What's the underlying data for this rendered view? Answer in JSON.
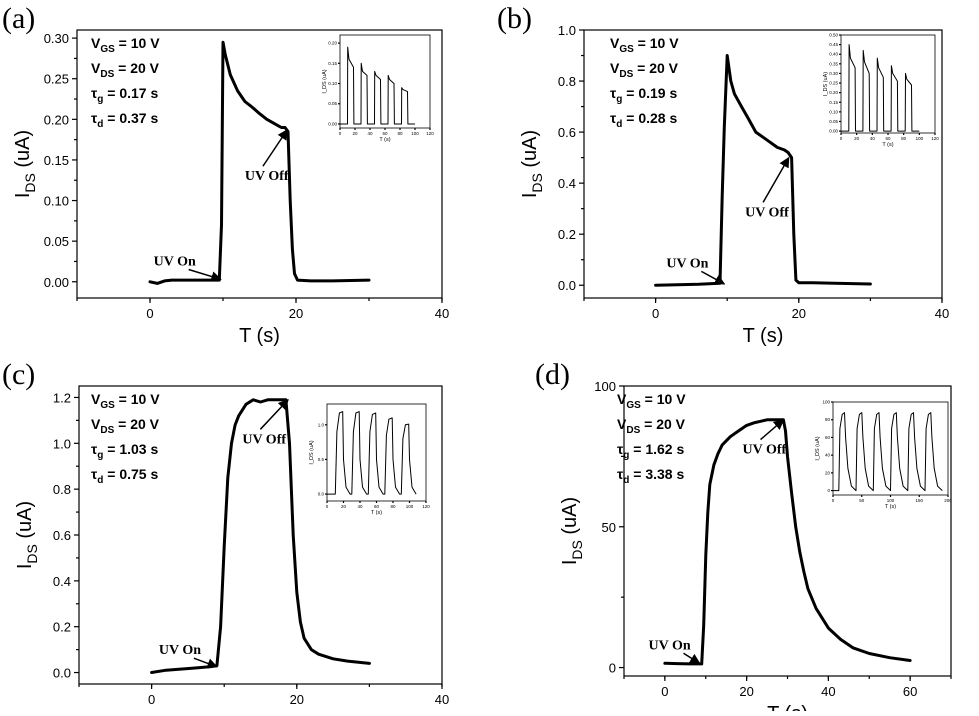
{
  "chart_data": [
    {
      "type": "line",
      "panel_label": "(a)",
      "xlabel": "T",
      "xunit": "(s)",
      "ylabel_main": "I",
      "ylabel_sub": "DS",
      "yunit": "(uA)",
      "xlim": [
        -10,
        40
      ],
      "ylim": [
        -0.02,
        0.31
      ],
      "xticks": [
        "0",
        "20",
        "40"
      ],
      "xtick_values": [
        0,
        20,
        40
      ],
      "yticks": [
        "0.00",
        "0.05",
        "0.10",
        "0.15",
        "0.20",
        "0.25",
        "0.30"
      ],
      "ytick_values": [
        0,
        0.05,
        0.1,
        0.15,
        0.2,
        0.25,
        0.3
      ],
      "params": [
        {
          "sym": "V",
          "sub": "GS",
          "val": " = 10 V"
        },
        {
          "sym": "V",
          "sub": "DS",
          "val": " = 20 V"
        },
        {
          "sym": "τ",
          "sub": "g",
          "val": " = 0.17 s"
        },
        {
          "sym": "τ",
          "sub": "d",
          "val": " = 0.37 s"
        }
      ],
      "annotations": [
        {
          "text": "UV On",
          "label_x": 0.5,
          "label_y": 0.02,
          "arrow_to": [
            9.7,
            0.003
          ]
        },
        {
          "text": "UV Off",
          "label_x": 13.0,
          "label_y": 0.125,
          "arrow_to": [
            18.8,
            0.187
          ]
        }
      ],
      "x": [
        0,
        1,
        2,
        3,
        5,
        7,
        9,
        9.5,
        9.8,
        10.0,
        10.3,
        11,
        12,
        13,
        14,
        15,
        16,
        17,
        18,
        18.5,
        18.9,
        19.2,
        19.5,
        19.8,
        20.2,
        22,
        25,
        30
      ],
      "y": [
        0,
        -0.002,
        0.001,
        0.002,
        0.002,
        0.002,
        0.002,
        0.002,
        0.07,
        0.295,
        0.28,
        0.255,
        0.235,
        0.222,
        0.215,
        0.207,
        0.2,
        0.195,
        0.19,
        0.19,
        0.185,
        0.1,
        0.04,
        0.01,
        0.002,
        0.001,
        0.001,
        0.002
      ],
      "inset": {
        "xlabel": "T (s)",
        "ylabel": "I_DS (uA)",
        "xlim": [
          0,
          120
        ],
        "ylim": [
          -0.01,
          0.22
        ],
        "xticks": [
          "0",
          "20",
          "40",
          "60",
          "80",
          "100",
          "120"
        ],
        "xtick_values": [
          0,
          20,
          40,
          60,
          80,
          100,
          120
        ],
        "yticks": [
          "0.00",
          "0.05",
          "0.10",
          "0.15",
          "0.20"
        ],
        "ytick_values": [
          0,
          0.05,
          0.1,
          0.15,
          0.2
        ],
        "x": [
          0,
          10,
          10.3,
          12,
          18,
          18.5,
          28,
          28.3,
          30,
          36,
          36.5,
          46,
          46.3,
          48,
          54,
          54.5,
          64,
          64.3,
          66,
          72,
          72.5,
          82,
          82.3,
          84,
          90,
          90.5,
          100
        ],
        "y": [
          0,
          0,
          0.19,
          0.16,
          0.14,
          0,
          0,
          0.15,
          0.13,
          0.12,
          0,
          0,
          0.13,
          0.12,
          0.11,
          0,
          0,
          0.12,
          0.11,
          0.1,
          0,
          0,
          0.09,
          0.085,
          0.08,
          0,
          0
        ]
      }
    },
    {
      "type": "line",
      "panel_label": "(b)",
      "xlabel": "T",
      "xunit": "(s)",
      "ylabel_main": "I",
      "ylabel_sub": "DS",
      "yunit": "(uA)",
      "xlim": [
        -10,
        40
      ],
      "ylim": [
        -0.05,
        1.0
      ],
      "xticks": [
        "0",
        "20",
        "40"
      ],
      "xtick_values": [
        0,
        20,
        40
      ],
      "yticks": [
        "0.0",
        "0.2",
        "0.4",
        "0.6",
        "0.8",
        "1.0"
      ],
      "ytick_values": [
        0,
        0.2,
        0.4,
        0.6,
        0.8,
        1.0
      ],
      "params": [
        {
          "sym": "V",
          "sub": "GS",
          "val": " = 10 V"
        },
        {
          "sym": "V",
          "sub": "DS",
          "val": " = 20 V"
        },
        {
          "sym": "τ",
          "sub": "g",
          "val": " = 0.19 s"
        },
        {
          "sym": "τ",
          "sub": "d",
          "val": " = 0.28 s"
        }
      ],
      "annotations": [
        {
          "text": "UV On",
          "label_x": 1.5,
          "label_y": 0.07,
          "arrow_to": [
            9.6,
            0.005
          ]
        },
        {
          "text": "UV Off",
          "label_x": 12.5,
          "label_y": 0.27,
          "arrow_to": [
            18.6,
            0.5
          ]
        }
      ],
      "x": [
        0,
        3,
        6,
        9,
        9.3,
        9.6,
        10.0,
        10.5,
        11,
        12,
        13,
        14,
        15,
        16,
        17,
        18,
        18.5,
        19.0,
        19.3,
        19.6,
        20,
        22,
        25,
        30
      ],
      "y": [
        0,
        0.002,
        0.004,
        0.008,
        0.35,
        0.62,
        0.9,
        0.8,
        0.75,
        0.7,
        0.65,
        0.6,
        0.58,
        0.56,
        0.54,
        0.53,
        0.52,
        0.5,
        0.2,
        0.02,
        0.01,
        0.01,
        0.008,
        0.005
      ],
      "inset": {
        "xlabel": "T (s)",
        "ylabel": "I_DS (uA)",
        "xlim": [
          0,
          120
        ],
        "ylim": [
          -0.01,
          0.5
        ],
        "xticks": [
          "0",
          "20",
          "40",
          "60",
          "80",
          "100",
          "120"
        ],
        "xtick_values": [
          0,
          20,
          40,
          60,
          80,
          100,
          120
        ],
        "yticks": [
          "0.00",
          "0.05",
          "0.10",
          "0.15",
          "0.20",
          "0.25",
          "0.30",
          "0.35",
          "0.40",
          "0.45",
          "0.50"
        ],
        "ytick_values": [
          0,
          0.05,
          0.1,
          0.15,
          0.2,
          0.25,
          0.3,
          0.35,
          0.4,
          0.45,
          0.5
        ],
        "x": [
          0,
          10,
          10.3,
          12,
          18,
          18.5,
          28,
          28.3,
          30,
          36,
          36.5,
          46,
          46.3,
          48,
          54,
          54.5,
          64,
          64.3,
          66,
          72,
          72.5,
          82,
          82.3,
          84,
          90,
          90.5,
          100
        ],
        "y": [
          0,
          0,
          0.45,
          0.38,
          0.33,
          0,
          0,
          0.42,
          0.36,
          0.3,
          0,
          0,
          0.38,
          0.33,
          0.28,
          0,
          0,
          0.34,
          0.3,
          0.26,
          0,
          0,
          0.3,
          0.27,
          0.24,
          0,
          0
        ]
      }
    },
    {
      "type": "line",
      "panel_label": "(c)",
      "xlabel": "T",
      "xunit": "(s)",
      "ylabel_main": "I",
      "ylabel_sub": "DS",
      "yunit": "(uA)",
      "xlim": [
        -10,
        40
      ],
      "ylim": [
        -0.05,
        1.25
      ],
      "xticks": [
        "0",
        "20",
        "40"
      ],
      "xtick_values": [
        0,
        20,
        40
      ],
      "yticks": [
        "0.0",
        "0.2",
        "0.4",
        "0.6",
        "0.8",
        "1.0",
        "1.2"
      ],
      "ytick_values": [
        0,
        0.2,
        0.4,
        0.6,
        0.8,
        1.0,
        1.2
      ],
      "params": [
        {
          "sym": "V",
          "sub": "GS",
          "val": " = 10 V"
        },
        {
          "sym": "V",
          "sub": "DS",
          "val": " = 20 V"
        },
        {
          "sym": "τ",
          "sub": "g",
          "val": " = 1.03 s"
        },
        {
          "sym": "τ",
          "sub": "d",
          "val": " = 0.75 s"
        }
      ],
      "annotations": [
        {
          "text": "UV On",
          "label_x": 1.0,
          "label_y": 0.08,
          "arrow_to": [
            9.0,
            0.025
          ]
        },
        {
          "text": "UV Off",
          "label_x": 12.5,
          "label_y": 1.0,
          "arrow_to": [
            18.8,
            1.19
          ]
        }
      ],
      "x": [
        0,
        2,
        4,
        6,
        8,
        9,
        9.5,
        10,
        10.5,
        11,
        11.5,
        12,
        13,
        14,
        15,
        16,
        17,
        18,
        18.5,
        19,
        19.5,
        20,
        20.5,
        21,
        22,
        23,
        25,
        27,
        30
      ],
      "y": [
        0,
        0.01,
        0.015,
        0.02,
        0.025,
        0.03,
        0.2,
        0.55,
        0.85,
        1.0,
        1.08,
        1.12,
        1.17,
        1.19,
        1.18,
        1.19,
        1.19,
        1.19,
        1.19,
        1.0,
        0.6,
        0.35,
        0.22,
        0.15,
        0.1,
        0.08,
        0.06,
        0.05,
        0.04
      ],
      "inset": {
        "xlabel": "T (s)",
        "ylabel": "I_DS (uA)",
        "xlim": [
          0,
          120
        ],
        "ylim": [
          -0.1,
          1.3
        ],
        "xticks": [
          "0",
          "20",
          "40",
          "60",
          "80",
          "100",
          "120"
        ],
        "xtick_values": [
          0,
          20,
          40,
          60,
          80,
          100,
          120
        ],
        "yticks": [
          "0.0",
          "0.5",
          "1.0"
        ],
        "ytick_values": [
          0,
          0.5,
          1.0
        ],
        "x": [
          0,
          10,
          12,
          15,
          19,
          20,
          23,
          28,
          30,
          32,
          35,
          39,
          40,
          43,
          48,
          50,
          52,
          55,
          59,
          60,
          63,
          68,
          70,
          72,
          75,
          79,
          80,
          83,
          88,
          90,
          92,
          95,
          99,
          100,
          103,
          108
        ],
        "y": [
          0,
          0,
          0.9,
          1.17,
          1.19,
          0.5,
          0.1,
          0,
          0,
          0.9,
          1.17,
          1.19,
          0.5,
          0.1,
          0,
          0,
          0.9,
          1.15,
          1.17,
          0.5,
          0.1,
          0,
          0,
          0.85,
          1.08,
          1.1,
          0.5,
          0.1,
          0,
          0,
          0.8,
          1.0,
          1.01,
          0.5,
          0.1,
          0
        ]
      }
    },
    {
      "type": "line",
      "panel_label": "(d)",
      "xlabel": "T",
      "xunit": "(s)",
      "ylabel_main": "I",
      "ylabel_sub": "DS",
      "yunit": "(uA)",
      "xlim": [
        -10,
        70
      ],
      "ylim": [
        -3,
        100
      ],
      "xticks": [
        "0",
        "20",
        "40",
        "60"
      ],
      "xtick_values": [
        0,
        20,
        40,
        60
      ],
      "yticks": [
        "0",
        "50",
        "100"
      ],
      "ytick_values": [
        0,
        50,
        100
      ],
      "params": [
        {
          "sym": "V",
          "sub": "GS",
          "val": " = 10 V"
        },
        {
          "sym": "V",
          "sub": "DS",
          "val": " = 20 V"
        },
        {
          "sym": "τ",
          "sub": "g",
          "val": " = 1.62 s"
        },
        {
          "sym": "τ",
          "sub": "d",
          "val": " = 3.38 s"
        }
      ],
      "annotations": [
        {
          "text": "UV On",
          "label_x": -4.0,
          "label_y": 6.5,
          "arrow_to": [
            8.5,
            1.5
          ]
        },
        {
          "text": "UV Off",
          "label_x": 19.0,
          "label_y": 76,
          "arrow_to": [
            29.0,
            88
          ]
        }
      ],
      "x": [
        0,
        3,
        6,
        9,
        9.5,
        10,
        10.5,
        11,
        12,
        13,
        14,
        16,
        18,
        20,
        22,
        25,
        28,
        29,
        29.5,
        30,
        31,
        32,
        33,
        34,
        35,
        37,
        40,
        43,
        46,
        50,
        55,
        60
      ],
      "y": [
        1.5,
        1.4,
        1.3,
        1.3,
        15,
        40,
        55,
        65,
        72,
        76,
        79,
        82,
        84,
        86,
        87,
        88,
        88,
        88,
        84,
        75,
        62,
        50,
        41,
        34,
        28,
        21,
        14,
        10,
        7,
        5,
        3.5,
        2.5
      ],
      "inset": {
        "xlabel": "T (s)",
        "ylabel": "I_DS (uA)",
        "xlim": [
          0,
          200
        ],
        "ylim": [
          -5,
          100
        ],
        "xticks": [
          "0",
          "50",
          "100",
          "150",
          "200"
        ],
        "xtick_values": [
          0,
          50,
          100,
          150,
          200
        ],
        "yticks": [
          "0",
          "20",
          "40",
          "60",
          "80",
          "100"
        ],
        "ytick_values": [
          0,
          20,
          40,
          60,
          80,
          100
        ],
        "x": [
          0,
          10,
          12,
          16,
          20,
          22,
          26,
          32,
          40,
          42,
          46,
          50,
          52,
          56,
          62,
          70,
          72,
          76,
          80,
          82,
          86,
          92,
          100,
          102,
          106,
          110,
          112,
          116,
          122,
          130,
          132,
          136,
          140,
          142,
          146,
          152,
          160,
          162,
          166,
          170,
          172,
          176,
          182,
          190
        ],
        "y": [
          0,
          0,
          70,
          86,
          88,
          60,
          25,
          5,
          0,
          70,
          86,
          88,
          60,
          25,
          5,
          0,
          70,
          86,
          88,
          60,
          25,
          5,
          0,
          70,
          86,
          88,
          60,
          25,
          5,
          0,
          70,
          86,
          88,
          60,
          25,
          5,
          0,
          70,
          86,
          88,
          60,
          25,
          5,
          0
        ]
      }
    }
  ]
}
